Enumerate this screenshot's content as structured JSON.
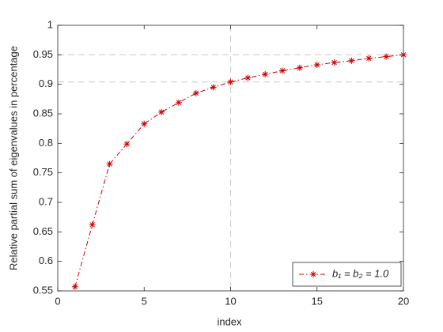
{
  "chart_data": {
    "type": "line",
    "x_label": "index",
    "y_label": "Relative partial sum of eigenvalues in percentage",
    "xlim": [
      0,
      20
    ],
    "xticks": [
      0,
      5,
      10,
      15,
      20
    ],
    "ylim": [
      0.55,
      1
    ],
    "yticks": [
      0.55,
      0.6,
      0.65,
      0.7,
      0.75,
      0.8,
      0.85,
      0.9,
      0.95,
      1
    ],
    "x": [
      1,
      2,
      3,
      4,
      5,
      6,
      7,
      8,
      9,
      10,
      11,
      12,
      13,
      14,
      15,
      16,
      17,
      18,
      19,
      20
    ],
    "series": [
      {
        "name": "b₁ = b₂ = 1.0",
        "color": "#cc0000",
        "values": [
          0.557,
          0.662,
          0.765,
          0.799,
          0.833,
          0.853,
          0.869,
          0.885,
          0.895,
          0.904,
          0.911,
          0.917,
          0.923,
          0.928,
          0.933,
          0.937,
          0.94,
          0.944,
          0.947,
          0.95
        ]
      }
    ],
    "vlines": [
      10
    ],
    "hlines": [
      0.904,
      0.95
    ],
    "legend": "lower right"
  }
}
